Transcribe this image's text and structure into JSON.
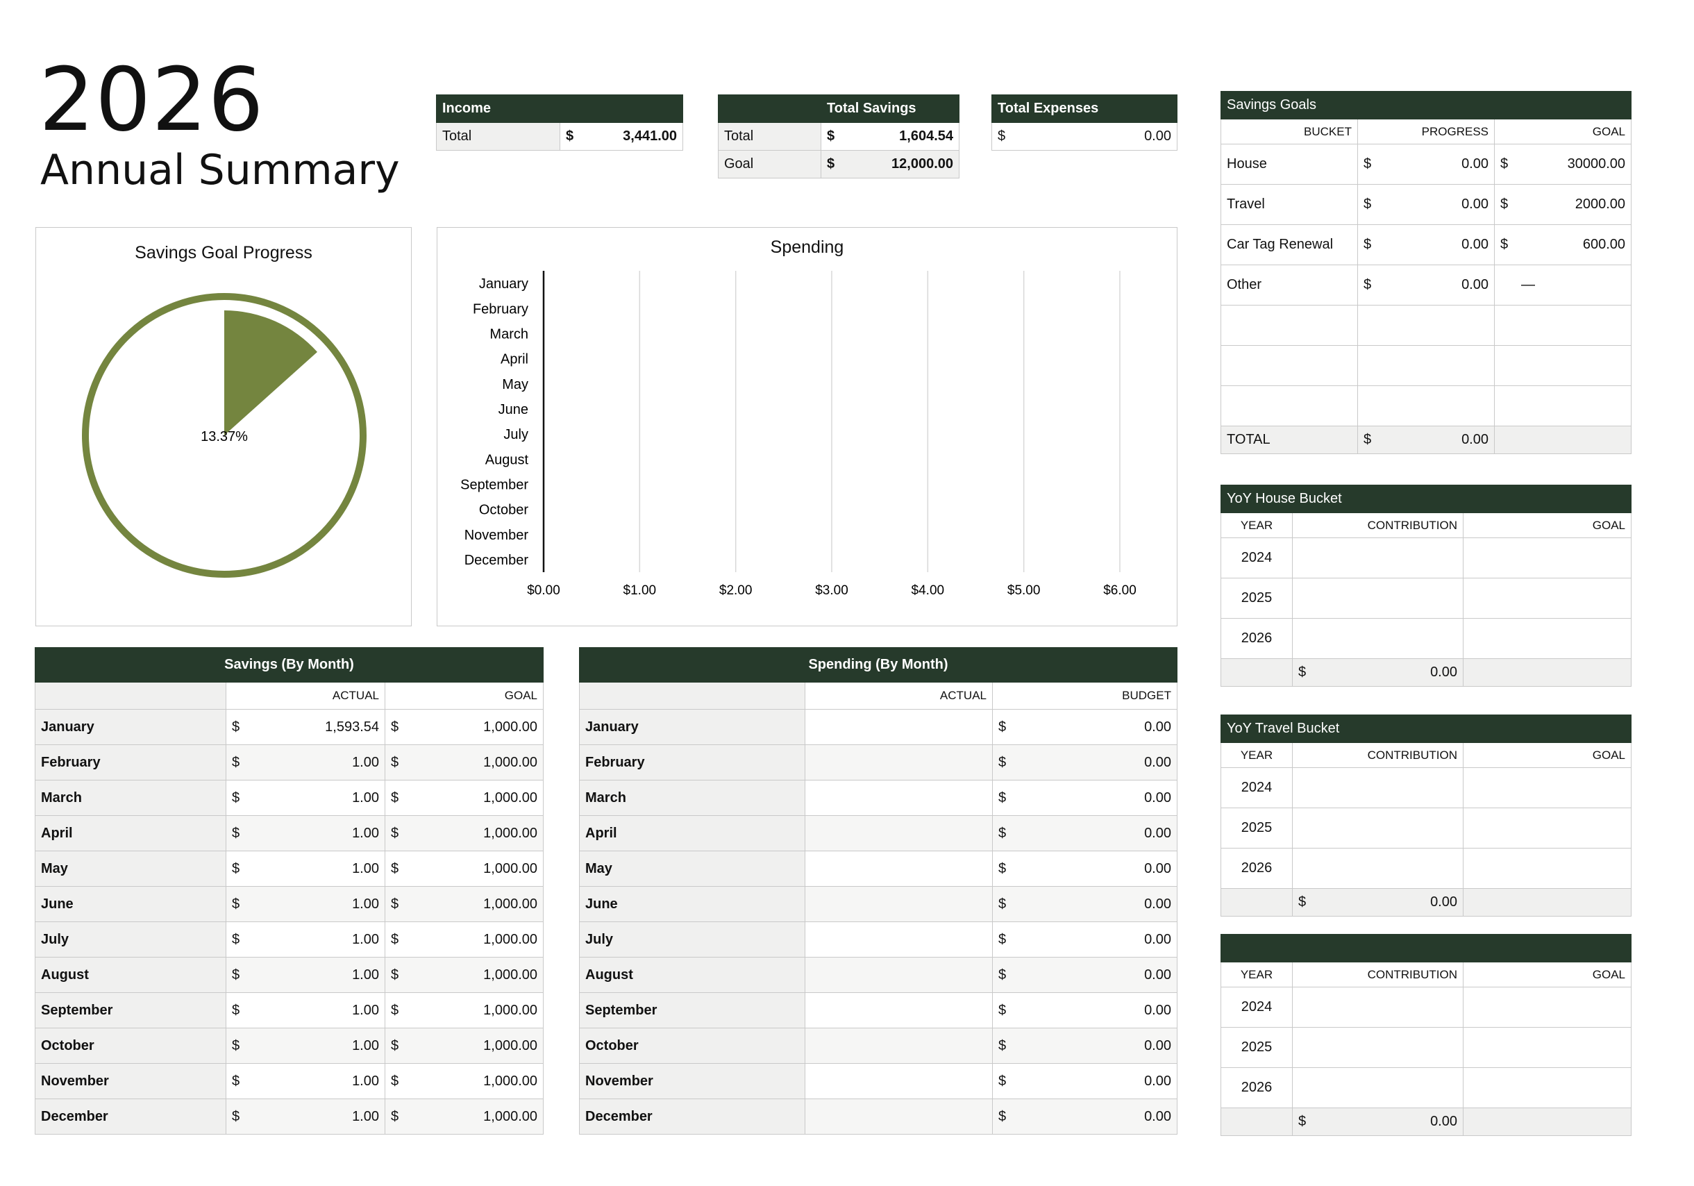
{
  "header": {
    "year": "2026",
    "subtitle": "Annual Summary"
  },
  "income": {
    "title": "Income",
    "row_label": "Total",
    "currency": "$",
    "value": "3,441.00"
  },
  "total_savings": {
    "title": "Total Savings",
    "rows": [
      {
        "label": "Total",
        "currency": "$",
        "value": "1,604.54"
      },
      {
        "label": "Goal",
        "currency": "$",
        "value": "12,000.00"
      }
    ]
  },
  "total_expenses": {
    "title": "Total Expenses",
    "currency": "$",
    "value": "0.00"
  },
  "progress_chart": {
    "title": "Savings Goal Progress",
    "label": "13.37%",
    "fraction": 0.1337,
    "color": "#74853f"
  },
  "chart_data": {
    "type": "bar",
    "title": "Spending",
    "orientation": "horizontal",
    "categories": [
      "January",
      "February",
      "March",
      "April",
      "May",
      "June",
      "July",
      "August",
      "September",
      "October",
      "November",
      "December"
    ],
    "values": [
      0,
      0,
      0,
      0,
      0,
      0,
      0,
      0,
      0,
      0,
      0,
      0
    ],
    "xlim": [
      0,
      6
    ],
    "x_ticks": [
      "$0.00",
      "$1.00",
      "$2.00",
      "$3.00",
      "$4.00",
      "$5.00",
      "$6.00"
    ],
    "grid": true
  },
  "savings_by_month": {
    "title": "Savings (By Month)",
    "col_actual": "ACTUAL",
    "col_goal": "GOAL",
    "currency": "$",
    "rows": [
      {
        "month": "January",
        "actual": "1,593.54",
        "goal": "1,000.00"
      },
      {
        "month": "February",
        "actual": "1.00",
        "goal": "1,000.00"
      },
      {
        "month": "March",
        "actual": "1.00",
        "goal": "1,000.00"
      },
      {
        "month": "April",
        "actual": "1.00",
        "goal": "1,000.00"
      },
      {
        "month": "May",
        "actual": "1.00",
        "goal": "1,000.00"
      },
      {
        "month": "June",
        "actual": "1.00",
        "goal": "1,000.00"
      },
      {
        "month": "July",
        "actual": "1.00",
        "goal": "1,000.00"
      },
      {
        "month": "August",
        "actual": "1.00",
        "goal": "1,000.00"
      },
      {
        "month": "September",
        "actual": "1.00",
        "goal": "1,000.00"
      },
      {
        "month": "October",
        "actual": "1.00",
        "goal": "1,000.00"
      },
      {
        "month": "November",
        "actual": "1.00",
        "goal": "1,000.00"
      },
      {
        "month": "December",
        "actual": "1.00",
        "goal": "1,000.00"
      }
    ]
  },
  "spending_by_month": {
    "title": "Spending (By Month)",
    "col_actual": "ACTUAL",
    "col_budget": "BUDGET",
    "currency": "$",
    "rows": [
      {
        "month": "January",
        "budget": "0.00"
      },
      {
        "month": "February",
        "budget": "0.00"
      },
      {
        "month": "March",
        "budget": "0.00"
      },
      {
        "month": "April",
        "budget": "0.00"
      },
      {
        "month": "May",
        "budget": "0.00"
      },
      {
        "month": "June",
        "budget": "0.00"
      },
      {
        "month": "July",
        "budget": "0.00"
      },
      {
        "month": "August",
        "budget": "0.00"
      },
      {
        "month": "September",
        "budget": "0.00"
      },
      {
        "month": "October",
        "budget": "0.00"
      },
      {
        "month": "November",
        "budget": "0.00"
      },
      {
        "month": "December",
        "budget": "0.00"
      }
    ]
  },
  "savings_goals": {
    "title": "Savings Goals",
    "col_bucket": "BUCKET",
    "col_progress": "PROGRESS",
    "col_goal": "GOAL",
    "currency": "$",
    "rows": [
      {
        "bucket": "House",
        "progress": "0.00",
        "goal": "30000.00"
      },
      {
        "bucket": "Travel",
        "progress": "0.00",
        "goal": "2000.00"
      },
      {
        "bucket": "Car Tag Renewal",
        "progress": "0.00",
        "goal": "600.00"
      },
      {
        "bucket": "Other",
        "progress": "0.00",
        "goal_dash": "—"
      }
    ],
    "total_label": "TOTAL",
    "total_value": "0.00"
  },
  "yoy_house": {
    "title": "YoY House Bucket",
    "col_year": "YEAR",
    "col_contribution": "CONTRIBUTION",
    "col_goal": "GOAL",
    "years": [
      "2024",
      "2025",
      "2026"
    ],
    "currency": "$",
    "total": "0.00"
  },
  "yoy_travel": {
    "title": "YoY Travel Bucket",
    "col_year": "YEAR",
    "col_contribution": "CONTRIBUTION",
    "col_goal": "GOAL",
    "years": [
      "2024",
      "2025",
      "2026"
    ],
    "currency": "$",
    "total": "0.00"
  },
  "yoy_other": {
    "title": "",
    "col_year": "YEAR",
    "col_contribution": "CONTRIBUTION",
    "col_goal": "GOAL",
    "years": [
      "2024",
      "2025",
      "2026"
    ],
    "currency": "$",
    "total": "0.00"
  }
}
